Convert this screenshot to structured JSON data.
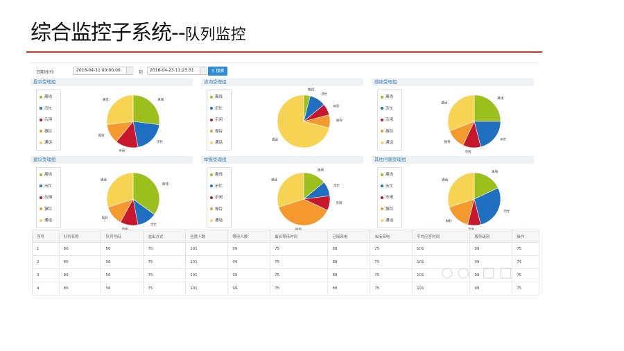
{
  "slide": {
    "title": "综合监控子系统--",
    "subtitle": "队列监控"
  },
  "toolbar": {
    "date_label": "日期时间：",
    "start_value": "2016-04-11 00:00:00",
    "to_label": "到",
    "end_value": "2016-04-23 11:23:31",
    "search_label": "搜索",
    "search_icon": "search-icon"
  },
  "legend_labels": [
    "离线",
    "示忙",
    "示闲",
    "振铃",
    "通话"
  ],
  "colors": {
    "离线": "#9dbf1e",
    "示忙": "#1f6fc1",
    "示闲": "#c7172d",
    "振铃": "#f3992e",
    "通话": "#f7d354",
    "accent": "#2e8bd6",
    "rule": "#c0392b"
  },
  "groups": [
    {
      "title": "投诉受理组",
      "shares": [
        0.27,
        0.2,
        0.14,
        0.12,
        0.27
      ],
      "labels": [
        {
          "text": "离线"
        },
        {
          "text": "示忙"
        },
        {
          "text": "示闲"
        },
        {
          "text": "振铃"
        },
        {
          "text": "通话"
        }
      ]
    },
    {
      "title": "咨询受理组",
      "shares": [
        0.04,
        0.1,
        0.07,
        0.08,
        0.71
      ],
      "labels": [
        {
          "text": "离线"
        },
        {
          "text": "示忙"
        },
        {
          "text": "示闲"
        },
        {
          "text": "振铃"
        },
        {
          "text": "通话"
        }
      ]
    },
    {
      "title": "感谢受理组",
      "shares": [
        0.25,
        0.21,
        0.11,
        0.12,
        0.31
      ],
      "labels": [
        {
          "text": "离线"
        },
        {
          "text": "示忙"
        },
        {
          "text": "示闲"
        },
        {
          "text": "振铃"
        },
        {
          "text": "通话"
        }
      ]
    },
    {
      "title": "建议受理组",
      "shares": [
        0.35,
        0.12,
        0.11,
        0.12,
        0.3
      ],
      "labels": [
        {
          "text": "离线"
        },
        {
          "text": "示忙"
        },
        {
          "text": "示闲"
        },
        {
          "text": "振铃"
        },
        {
          "text": "通话"
        }
      ]
    },
    {
      "title": "举报受理组",
      "shares": [
        0.14,
        0.09,
        0.09,
        0.38,
        0.3
      ],
      "labels": [
        {
          "text": "离线"
        },
        {
          "text": "示忙"
        },
        {
          "text": "示闲"
        },
        {
          "text": "振铃"
        },
        {
          "text": "通话"
        }
      ]
    },
    {
      "title": "其他问题受理组",
      "shares": [
        0.18,
        0.28,
        0.08,
        0.16,
        0.3
      ],
      "labels": [
        {
          "text": "离线"
        },
        {
          "text": "示忙"
        },
        {
          "text": "示闲"
        },
        {
          "text": "振铃"
        },
        {
          "text": "通话"
        }
      ]
    }
  ],
  "table": {
    "headers": [
      "序号",
      "队列名称",
      "队列号码",
      "溢出方式",
      "坐席人数",
      "等待人数",
      "最长等待时间",
      "已接来电",
      "未接来电",
      "平均应答时间",
      "服务级别",
      "操作"
    ],
    "rows": [
      [
        "1",
        "80",
        "56",
        "75",
        "101",
        "99",
        "75",
        "88",
        "75",
        "101",
        "99",
        "75"
      ],
      [
        "2",
        "80",
        "56",
        "75",
        "101",
        "99",
        "75",
        "88",
        "75",
        "101",
        "99",
        "75"
      ],
      [
        "3",
        "80",
        "56",
        "75",
        "101",
        "99",
        "75",
        "88",
        "75",
        "101",
        "99",
        "75"
      ],
      [
        "4",
        "80",
        "56",
        "75",
        "101",
        "99",
        "75",
        "88",
        "75",
        "101",
        "99",
        "75"
      ]
    ]
  }
}
